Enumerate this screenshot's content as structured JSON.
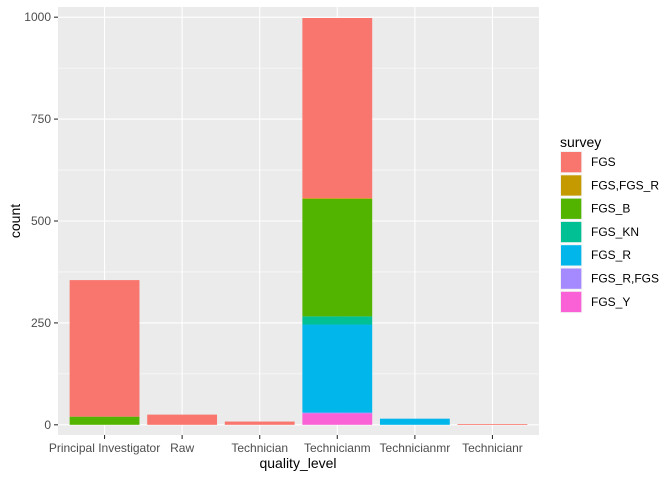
{
  "chart_data": {
    "type": "bar",
    "stacked": true,
    "xlabel": "quality_level",
    "ylabel": "count",
    "ylim": [
      -25,
      1025
    ],
    "yticks": [
      0,
      250,
      500,
      750,
      1000
    ],
    "grid": true,
    "legend_position": "right",
    "legend_title": "survey",
    "categories": [
      "Principal Investigator",
      "Raw",
      "Technician",
      "Technicianm",
      "Technicianmr",
      "Technicianr"
    ],
    "series": [
      {
        "name": "FGS",
        "color": "#F8766D",
        "values": [
          335,
          25,
          8,
          442,
          0,
          2
        ]
      },
      {
        "name": "FGS,FGS_R",
        "color": "#C49A00",
        "values": [
          0,
          0,
          0,
          2,
          0,
          0
        ]
      },
      {
        "name": "FGS_B",
        "color": "#53B400",
        "values": [
          20,
          0,
          0,
          288,
          0,
          0
        ]
      },
      {
        "name": "FGS_KN",
        "color": "#00C094",
        "values": [
          0,
          0,
          0,
          20,
          0,
          0
        ]
      },
      {
        "name": "FGS_R",
        "color": "#00B6EB",
        "values": [
          0,
          0,
          0,
          216,
          15,
          0
        ]
      },
      {
        "name": "FGS_R,FGS",
        "color": "#A58AFF",
        "values": [
          0,
          0,
          0,
          2,
          0,
          0
        ]
      },
      {
        "name": "FGS_Y",
        "color": "#FB61D7",
        "values": [
          0,
          0,
          0,
          28,
          0,
          0
        ]
      }
    ]
  }
}
